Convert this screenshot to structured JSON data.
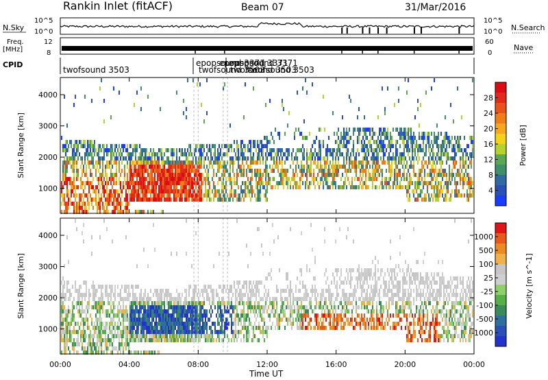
{
  "header": {
    "station": "Rankin Inlet (fitACF)",
    "beam": "Beam 07",
    "date": "31/Mar/2016"
  },
  "top_panels": {
    "nsky_label": "N.Sky",
    "nsky_ticks": [
      "10^5",
      "10^0"
    ],
    "nsearch_label": "N.Search",
    "nsearch_ticks": [
      "10^5",
      "10^0"
    ],
    "freq_label_line1": "Freq.",
    "freq_label_line2": "[MHz]",
    "freq_ticks": [
      "12",
      "8"
    ],
    "nave_label": "Nave",
    "nave_ticks": [
      "60",
      "0"
    ],
    "cpid_label": "CPID",
    "cpid_entries": [
      {
        "text": "twofsound 3503",
        "row": 2
      },
      {
        "text": "epopsound 3371",
        "row": 1
      },
      {
        "text": "twofsound 3503",
        "row": 2
      },
      {
        "text": "epopsound 3371",
        "row": 1
      },
      {
        "text": "twofsound 3503",
        "row": 2
      },
      {
        "text": "epopsound 3371",
        "row": 1
      },
      {
        "text": "twofsound 3503",
        "row": 2
      }
    ]
  },
  "colors": {
    "power_scale": [
      "#1a3cff",
      "#2c4fb5",
      "#2f6aa0",
      "#3f8f6a",
      "#5aa852",
      "#b6d22e",
      "#f2d21b",
      "#f5a623",
      "#ef7d1a",
      "#e8531b",
      "#e02b1a",
      "#d90d13"
    ],
    "velocity_scale": [
      "#2233cc",
      "#2a4fb8",
      "#2f6f9c",
      "#3a8a5a",
      "#55b04a",
      "#8fd06a",
      "#cfcfcf",
      "#c6c6c6",
      "#f0b04a",
      "#ec8a23",
      "#e85a1b",
      "#e01515"
    ]
  },
  "chart_data": [
    {
      "type": "heatmap",
      "title": "Power",
      "xlabel": "Time UT",
      "ylabel": "Slant Range [km]",
      "x_ticks": [
        "00:00",
        "04:00",
        "08:00",
        "12:00",
        "16:00",
        "20:00",
        "00:00"
      ],
      "xlim_hours": [
        0,
        24
      ],
      "y_ticks": [
        1000,
        2000,
        3000,
        4000
      ],
      "ylim": [
        200,
        4550
      ],
      "colorbar": {
        "label": "Power [dB]",
        "ticks": [
          "4",
          "8",
          "12",
          "16",
          "20",
          "24",
          "28"
        ],
        "range": [
          0,
          30
        ]
      }
    },
    {
      "type": "heatmap",
      "title": "Velocity",
      "xlabel": "Time UT",
      "ylabel": "Slant Range [km]",
      "x_ticks": [
        "00:00",
        "04:00",
        "08:00",
        "12:00",
        "16:00",
        "20:00",
        "00:00"
      ],
      "xlim_hours": [
        0,
        24
      ],
      "y_ticks": [
        1000,
        2000,
        3000,
        4000
      ],
      "ylim": [
        200,
        4550
      ],
      "colorbar": {
        "label": "Velocity [m s^-1]",
        "ticks": [
          "1000",
          "500",
          "100",
          "25",
          "-25",
          "-100",
          "-500",
          "-1000"
        ]
      }
    }
  ],
  "x_axis": {
    "title": "Time UT",
    "ticks": [
      "00:00",
      "04:00",
      "08:00",
      "12:00",
      "16:00",
      "20:00",
      "00:00"
    ]
  }
}
